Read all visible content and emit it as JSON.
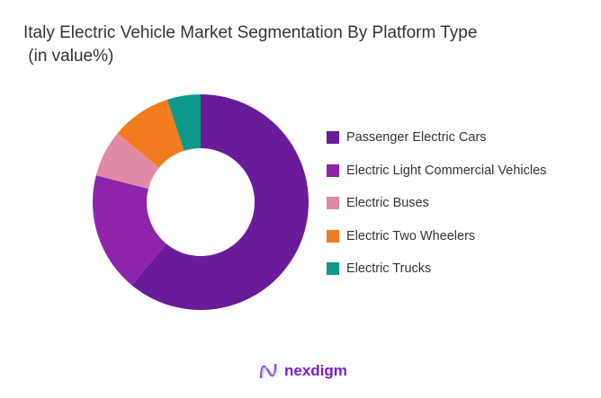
{
  "chart_data": {
    "type": "pie",
    "donut": true,
    "title": "Italy Electric Vehicle Market Segmentation By Platform Type\n (in value%)",
    "categories": [
      "Passenger Electric Cars",
      "Electric Light Commercial Vehicles",
      "Electric Buses",
      "Electric Two Wheelers",
      "Electric Trucks"
    ],
    "values": [
      61,
      18,
      7,
      9,
      5
    ],
    "colors": [
      "#6a1b9a",
      "#8e24aa",
      "#e08aa6",
      "#f47c20",
      "#0e9a8a"
    ],
    "legend_position": "right"
  },
  "logo": {
    "text": "nexdigm"
  }
}
